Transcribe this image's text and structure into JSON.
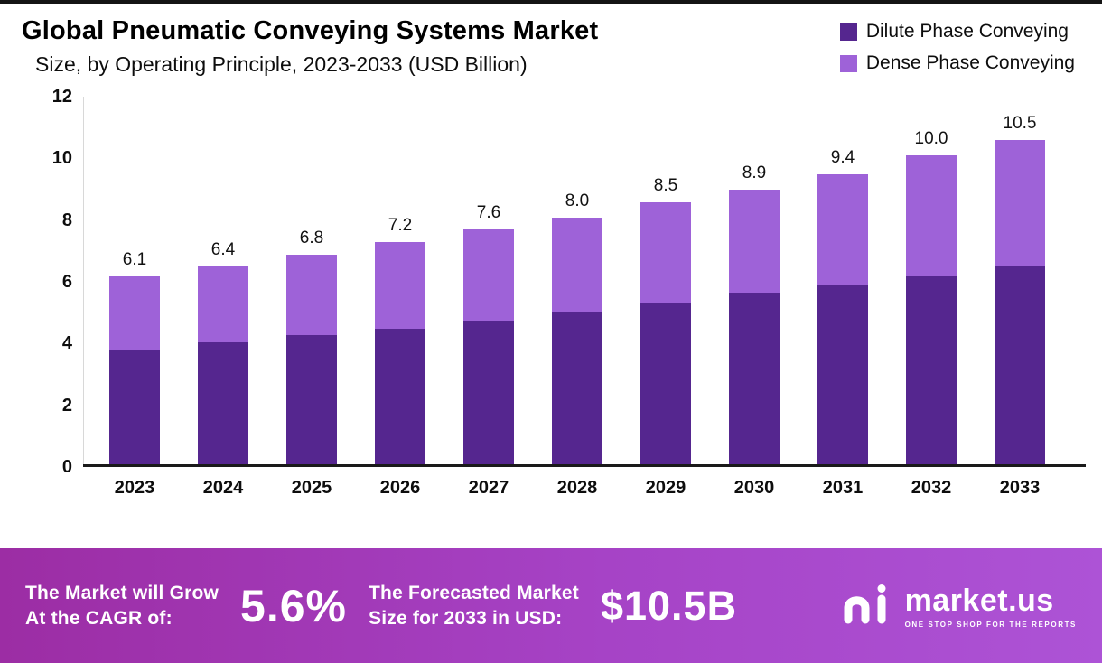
{
  "title": {
    "line1": "Global Pneumatic Conveying Systems Market",
    "line2": "Size, by Operating Principle, 2023-2033 (USD Billion)"
  },
  "legend": [
    {
      "label": "Dilute Phase Conveying",
      "color": "#55268f"
    },
    {
      "label": "Dense Phase Conveying",
      "color": "#9e62d8"
    }
  ],
  "chart_data": {
    "type": "bar",
    "stacked": true,
    "title": "Global Pneumatic Conveying Systems Market Size, by Operating Principle, 2023-2033 (USD Billion)",
    "categories": [
      "2023",
      "2024",
      "2025",
      "2026",
      "2027",
      "2028",
      "2029",
      "2030",
      "2031",
      "2032",
      "2033"
    ],
    "series": [
      {
        "name": "Dilute Phase Conveying",
        "color": "#55268f",
        "values": [
          3.7,
          3.95,
          4.2,
          4.4,
          4.65,
          4.95,
          5.25,
          5.55,
          5.8,
          6.1,
          6.45
        ]
      },
      {
        "name": "Dense Phase Conveying",
        "color": "#9e62d8",
        "values": [
          2.4,
          2.45,
          2.6,
          2.8,
          2.95,
          3.05,
          3.25,
          3.35,
          3.6,
          3.9,
          4.05
        ]
      }
    ],
    "totals": [
      6.1,
      6.4,
      6.8,
      7.2,
      7.6,
      8.0,
      8.5,
      8.9,
      9.4,
      10.0,
      10.5
    ],
    "ylim": [
      0,
      12
    ],
    "yticks": [
      0,
      2,
      4,
      6,
      8,
      10,
      12
    ],
    "grid": false,
    "legend_position": "top-right"
  },
  "banner": {
    "grow_line1": "The Market will Grow",
    "grow_line2": "At the CAGR of:",
    "cagr_value": "5.6%",
    "forecast_line1": "The Forecasted Market",
    "forecast_line2": "Size for 2033 in USD:",
    "forecast_value": "$10.5B",
    "brand": "market.us",
    "tagline": "ONE STOP SHOP FOR THE REPORTS"
  }
}
